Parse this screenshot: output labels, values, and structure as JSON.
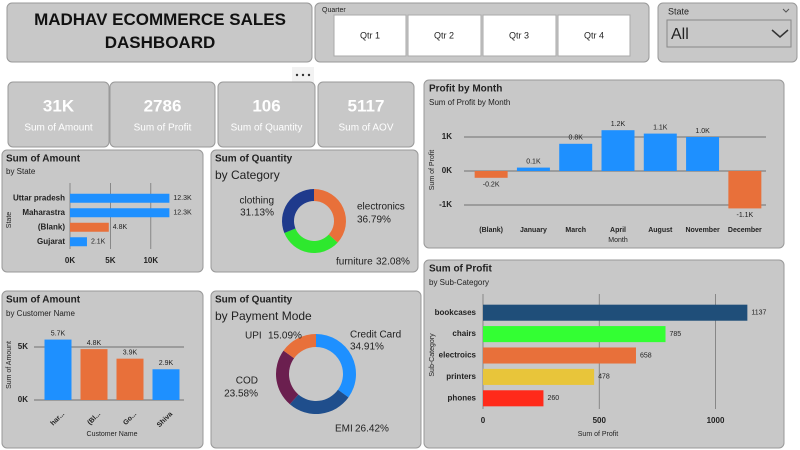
{
  "header": {
    "title": "MADHAV ECOMMERCE SALES DASHBOARD"
  },
  "quarter_slicer": {
    "label": "Quarter",
    "options": [
      "Qtr 1",
      "Qtr 2",
      "Qtr 3",
      "Qtr 4"
    ]
  },
  "state_slicer": {
    "label": "State",
    "value": "All"
  },
  "cards": [
    {
      "value": "31K",
      "label": "Sum of Amount"
    },
    {
      "value": "2786",
      "label": "Sum of Profit"
    },
    {
      "value": "106",
      "label": "Sum of Quantity"
    },
    {
      "value": "5117",
      "label": "Sum of AOV"
    }
  ],
  "chart_data": [
    {
      "type": "bar",
      "orientation": "horizontal",
      "title": "Sum of Amount",
      "subtitle": "by State",
      "y_label": "State",
      "categories": [
        "Uttar pradesh",
        "Maharastra",
        "(Blank)",
        "Gujarat"
      ],
      "values": [
        12300,
        12300,
        4800,
        2100
      ],
      "value_labels": [
        "12.3K",
        "12.3K",
        "4.8K",
        "2.1K"
      ],
      "colors": [
        "#1e90ff",
        "#1e90ff",
        "#e8703a",
        "#1e90ff"
      ],
      "xlim": [
        0,
        12500
      ],
      "xticks": [
        {
          "value": 0,
          "label": "0K"
        },
        {
          "value": 5000,
          "label": "5K"
        },
        {
          "value": 10000,
          "label": "10K"
        }
      ],
      "grid": true
    },
    {
      "type": "donut",
      "title": "Sum of Quantity",
      "subtitle": "by Category",
      "categories": [
        "electronics",
        "furniture",
        "clothing"
      ],
      "values": [
        36.79,
        32.08,
        31.13
      ],
      "value_labels": [
        "36.79%",
        "32.08%",
        "31.13%"
      ],
      "colors": [
        "#e8703a",
        "#2ee82e",
        "#1f3a8c"
      ]
    },
    {
      "type": "bar",
      "orientation": "vertical",
      "title": "Profit by Month",
      "subtitle": "Sum of Profit by Month",
      "x_label": "Month",
      "y_label": "Sum of Profit",
      "categories": [
        "(Blank)",
        "January",
        "March",
        "April",
        "August",
        "November",
        "December"
      ],
      "values": [
        -200,
        100,
        800,
        1200,
        1100,
        1000,
        -1100
      ],
      "value_labels": [
        "-0.2K",
        "0.1K",
        "0.8K",
        "1.2K",
        "1.1K",
        "1.0K",
        "-1.1K"
      ],
      "colors": [
        "#e8703a",
        "#1e90ff",
        "#1e90ff",
        "#1e90ff",
        "#1e90ff",
        "#1e90ff",
        "#e8703a"
      ],
      "ylim": [
        -1200,
        1300
      ],
      "yticks": [
        {
          "value": 1000,
          "label": "1K"
        },
        {
          "value": 0,
          "label": "0K"
        },
        {
          "value": -1000,
          "label": "-1K"
        }
      ],
      "grid": true
    },
    {
      "type": "bar",
      "orientation": "vertical",
      "title": "Sum of Amount",
      "subtitle": "by Customer Name",
      "x_label": "Customer Name",
      "y_label": "Sum of Amount",
      "categories": [
        "har...",
        "(Bl...",
        "Go...",
        "Shiva"
      ],
      "values": [
        5700,
        4800,
        3900,
        2900
      ],
      "value_labels": [
        "5.7K",
        "4.8K",
        "3.9K",
        "2.9K"
      ],
      "colors": [
        "#1e90ff",
        "#e8703a",
        "#e8703a",
        "#1e90ff"
      ],
      "ylim": [
        0,
        6500
      ],
      "yticks": [
        {
          "value": 5000,
          "label": "5K"
        },
        {
          "value": 0,
          "label": "0K"
        }
      ],
      "grid": true
    },
    {
      "type": "donut",
      "title": "Sum of Quantity",
      "subtitle": "by Payment Mode",
      "categories": [
        "Credit Card",
        "EMI",
        "COD",
        "UPI"
      ],
      "values": [
        34.91,
        26.42,
        23.58,
        15.09
      ],
      "value_labels": [
        "34.91%",
        "26.42%",
        "23.58%",
        "15.09%"
      ],
      "colors": [
        "#1e90ff",
        "#1f4e8c",
        "#6b1f4f",
        "#e8703a"
      ]
    },
    {
      "type": "bar",
      "orientation": "horizontal",
      "title": "Sum of Profit",
      "subtitle": "by Sub-Category",
      "x_label": "Sum of Profit",
      "y_label": "Sub-Category",
      "categories": [
        "bookcases",
        "chairs",
        "electroics",
        "printers",
        "phones"
      ],
      "values": [
        1137,
        785,
        658,
        478,
        260
      ],
      "colors": [
        "#1f4e79",
        "#33ff33",
        "#e8703a",
        "#e8c53a",
        "#ff2a1a"
      ],
      "xlim": [
        0,
        1200
      ],
      "xticks": [
        0,
        500,
        1000
      ],
      "grid": true
    }
  ]
}
